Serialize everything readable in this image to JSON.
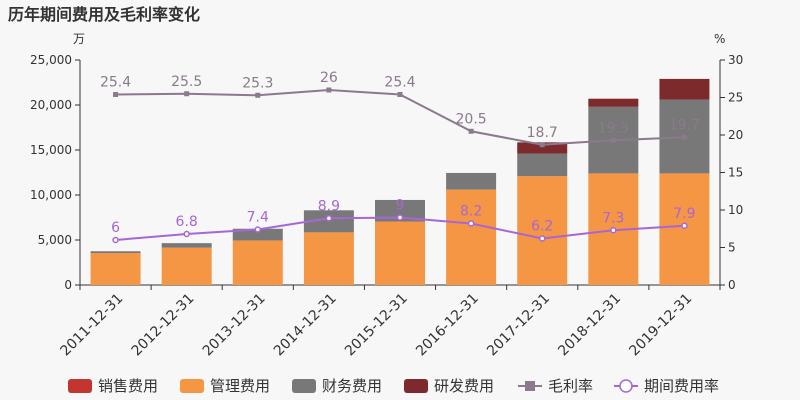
{
  "chart_data": {
    "type": "bar",
    "title": "历年期间费用及毛利率变化",
    "y_left_unit": "万",
    "y_right_unit": "%",
    "categories": [
      "2011-12-31",
      "2012-12-31",
      "2013-12-31",
      "2014-12-31",
      "2015-12-31",
      "2016-12-31",
      "2017-12-31",
      "2018-12-31",
      "2019-12-31"
    ],
    "ylim_left": [
      0,
      25000
    ],
    "yticks_left": [
      "0",
      "5,000",
      "10,000",
      "15,000",
      "20,000",
      "25,000"
    ],
    "ylim_right": [
      0,
      30
    ],
    "yticks_right": [
      "0",
      "5",
      "10",
      "15",
      "20",
      "25",
      "30"
    ],
    "stacked_series": [
      {
        "name": "销售费用",
        "color": "#c23531",
        "values": [
          0,
          0,
          0,
          0,
          0,
          0,
          0,
          0,
          0
        ]
      },
      {
        "name": "管理费用",
        "color": "#f59644",
        "values": [
          3550,
          4150,
          4950,
          5850,
          7050,
          10600,
          12100,
          12400,
          12400
        ]
      },
      {
        "name": "财务费用",
        "color": "#787878",
        "values": [
          200,
          500,
          1300,
          2450,
          2400,
          1850,
          2500,
          7400,
          8200
        ]
      },
      {
        "name": "研发费用",
        "color": "#7c2a2c",
        "values": [
          0,
          0,
          0,
          0,
          0,
          0,
          1250,
          900,
          2300
        ]
      }
    ],
    "line_series": [
      {
        "name": "毛利率",
        "color": "#8a7a8c",
        "marker": "square",
        "values": [
          25.4,
          25.5,
          25.3,
          26,
          25.4,
          20.5,
          18.7,
          19.3,
          19.7
        ],
        "labels": [
          "25.4",
          "25.5",
          "25.3",
          "26",
          "25.4",
          "20.5",
          "18.7",
          "19.3",
          "19.7"
        ]
      },
      {
        "name": "期间费用率",
        "color": "#a667d6",
        "marker": "circle",
        "values": [
          6,
          6.8,
          7.4,
          8.9,
          9,
          8.2,
          6.2,
          7.3,
          7.9
        ],
        "labels": [
          "6",
          "6.8",
          "7.4",
          "8.9",
          "9",
          "8.2",
          "6.2",
          "7.3",
          "7.9"
        ]
      }
    ],
    "grid": false,
    "legend_position": "bottom"
  }
}
